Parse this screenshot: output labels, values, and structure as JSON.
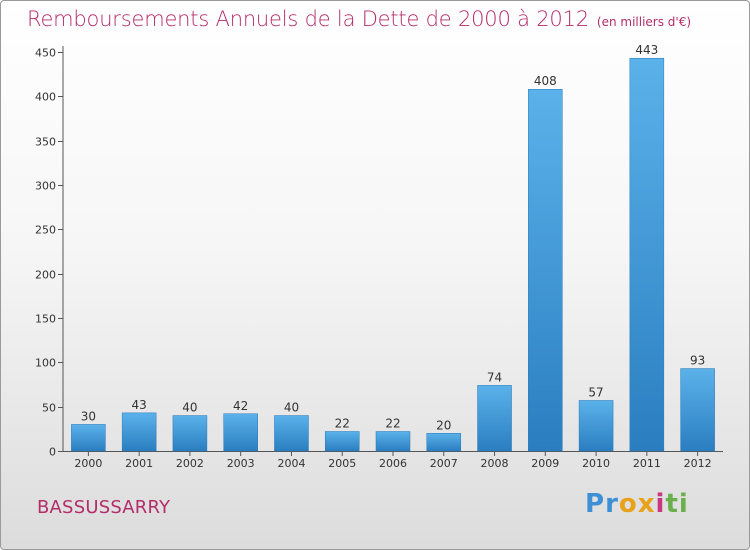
{
  "title": "Remboursements Annuels de la Dette de 2000 à 2012",
  "subtitle": "(en milliers d'€)",
  "commune": "BASSUSSARRY",
  "logo": {
    "text": "Proxiti",
    "letters": [
      "P",
      "r",
      "o",
      "x",
      "i",
      "t",
      "i"
    ],
    "colors": [
      "#3d8fd6",
      "#3d8fd6",
      "#e8a21a",
      "#e8a21a",
      "#c9387e",
      "#6ab04c",
      "#6ab04c"
    ]
  },
  "colors": {
    "title": "#b42c6a",
    "bar_top": "#5bb2ea",
    "bar_bottom": "#2a7ec0"
  },
  "chart_data": {
    "type": "bar",
    "title": "Remboursements Annuels de la Dette de 2000 à 2012",
    "subtitle": "(en milliers d'€)",
    "xlabel": "",
    "ylabel": "",
    "categories": [
      "2000",
      "2001",
      "2002",
      "2003",
      "2004",
      "2005",
      "2006",
      "2007",
      "2008",
      "2009",
      "2010",
      "2011",
      "2012"
    ],
    "values": [
      30,
      43,
      40,
      42,
      40,
      22,
      22,
      20,
      74,
      408,
      57,
      443,
      93
    ],
    "ylim": [
      0,
      450
    ],
    "yticks": [
      0,
      50,
      100,
      150,
      200,
      250,
      300,
      350,
      400,
      450
    ],
    "data_labels": true,
    "grid": false,
    "legend": "none"
  }
}
